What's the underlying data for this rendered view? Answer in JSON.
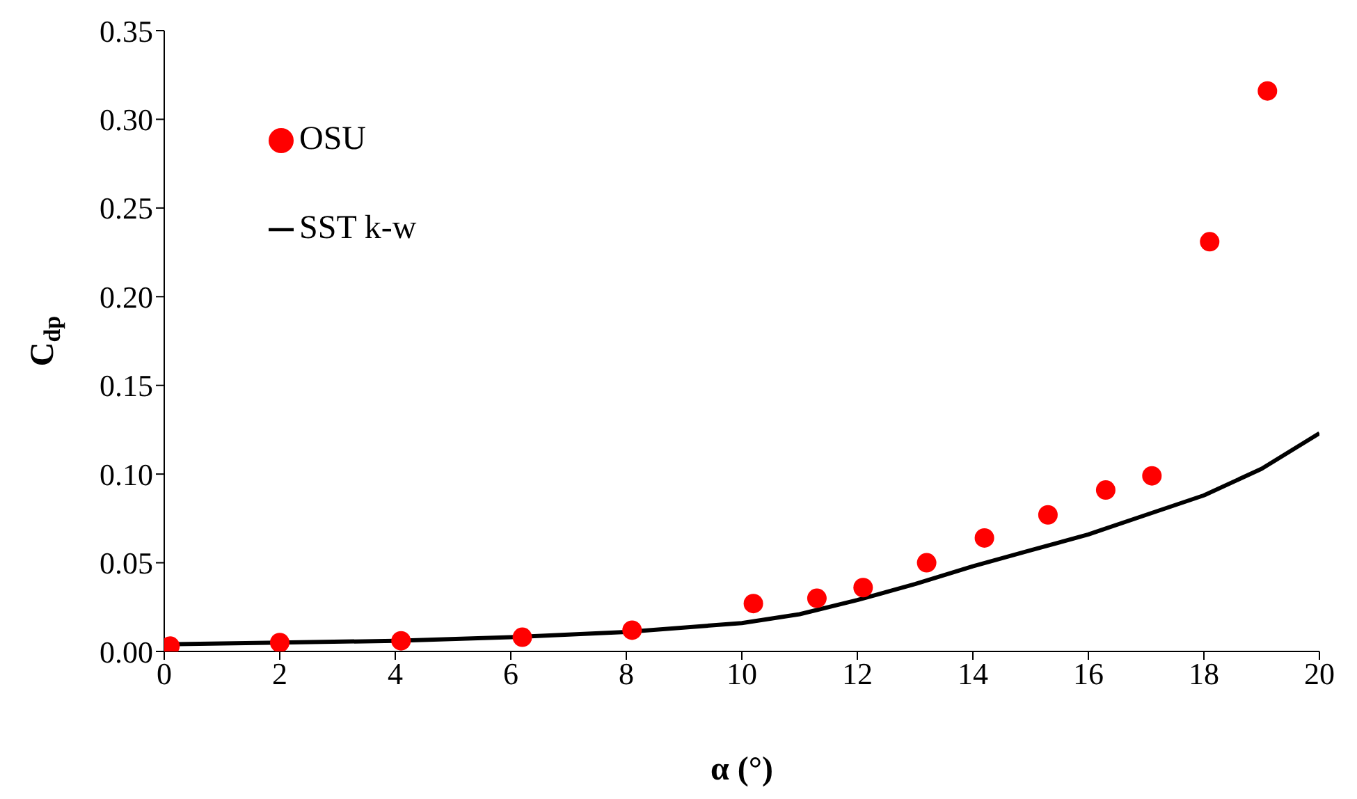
{
  "chart_data": {
    "type": "scatter",
    "xlabel": "α (°)",
    "ylabel": "C$_{dp}$",
    "xlim": [
      0,
      20
    ],
    "xticks": [
      0,
      2,
      4,
      6,
      8,
      10,
      12,
      14,
      16,
      18,
      20
    ],
    "ylim": [
      0,
      0.35
    ],
    "yticks": [
      {
        "value": 0,
        "label": "0.00"
      },
      {
        "value": 0.05,
        "label": "0.05"
      },
      {
        "value": 0.1,
        "label": "0.10"
      },
      {
        "value": 0.15,
        "label": "0.15"
      },
      {
        "value": 0.2,
        "label": "0.20"
      },
      {
        "value": 0.25,
        "label": "0.25"
      },
      {
        "value": 0.3,
        "label": "0.30"
      },
      {
        "value": 0.35,
        "label": "0.35"
      }
    ],
    "grid": false,
    "legend": "top left",
    "series": [
      {
        "name": "OSU",
        "color": "#ff0000",
        "marker": "circle",
        "x": [
          0.1,
          2.0,
          4.1,
          6.2,
          8.1,
          10.2,
          11.3,
          12.1,
          13.2,
          14.2,
          15.3,
          16.3,
          17.1,
          18.1,
          19.1
        ],
        "values": [
          0.003,
          0.005,
          0.006,
          0.008,
          0.012,
          0.027,
          0.03,
          0.036,
          0.05,
          0.064,
          0.077,
          0.091,
          0.099,
          0.231,
          0.316
        ]
      },
      {
        "name": "SST k-w",
        "type": "line",
        "color": "#000000",
        "marker": "none",
        "line_style": "solid",
        "x": [
          0,
          2,
          4,
          6,
          8,
          10,
          11,
          12,
          13,
          14,
          15,
          16,
          17,
          18,
          19,
          20
        ],
        "values": [
          0.004,
          0.005,
          0.006,
          0.008,
          0.011,
          0.016,
          0.021,
          0.029,
          0.038,
          0.048,
          0.057,
          0.066,
          0.077,
          0.088,
          0.103,
          0.123
        ]
      }
    ]
  }
}
